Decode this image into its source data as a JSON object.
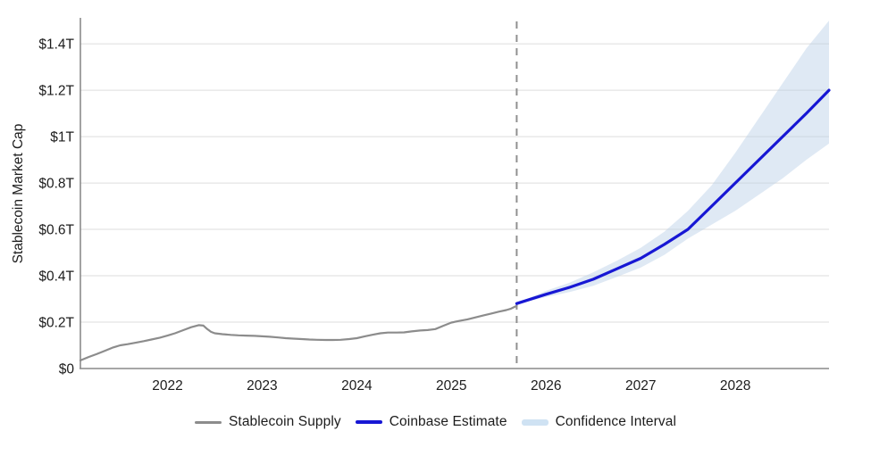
{
  "chart_data": {
    "type": "line",
    "title": "",
    "xlabel": "",
    "ylabel": "Stablecoin Market Cap",
    "xlim": [
      2021.08,
      2028.99
    ],
    "ylim": [
      0,
      1.512
    ],
    "grid": true,
    "legend_position": "bottom-center",
    "forecast_boundary_x": 2025.69,
    "x_ticks": [
      {
        "value": 2022,
        "label": "2022"
      },
      {
        "value": 2023,
        "label": "2023"
      },
      {
        "value": 2024,
        "label": "2024"
      },
      {
        "value": 2025,
        "label": "2025"
      },
      {
        "value": 2026,
        "label": "2026"
      },
      {
        "value": 2027,
        "label": "2027"
      },
      {
        "value": 2028,
        "label": "2028"
      }
    ],
    "y_ticks": [
      {
        "value": 0,
        "label": "$0"
      },
      {
        "value": 0.2,
        "label": "$0.2T"
      },
      {
        "value": 0.4,
        "label": "$0.4T"
      },
      {
        "value": 0.6,
        "label": "$0.6T"
      },
      {
        "value": 0.8,
        "label": "$0.8T"
      },
      {
        "value": 1.0,
        "label": "$1T"
      },
      {
        "value": 1.2,
        "label": "$1.2T"
      },
      {
        "value": 1.4,
        "label": "$1.4T"
      }
    ],
    "series": [
      {
        "name": "Stablecoin Supply",
        "kind": "line",
        "color": "#8c8c8c",
        "width": 2.2,
        "points": [
          [
            2021.08,
            0.035
          ],
          [
            2021.17,
            0.05
          ],
          [
            2021.25,
            0.062
          ],
          [
            2021.33,
            0.075
          ],
          [
            2021.42,
            0.09
          ],
          [
            2021.5,
            0.1
          ],
          [
            2021.58,
            0.105
          ],
          [
            2021.67,
            0.112
          ],
          [
            2021.75,
            0.118
          ],
          [
            2021.83,
            0.125
          ],
          [
            2021.92,
            0.133
          ],
          [
            2022.0,
            0.142
          ],
          [
            2022.08,
            0.152
          ],
          [
            2022.17,
            0.166
          ],
          [
            2022.25,
            0.178
          ],
          [
            2022.33,
            0.187
          ],
          [
            2022.38,
            0.185
          ],
          [
            2022.42,
            0.17
          ],
          [
            2022.46,
            0.158
          ],
          [
            2022.5,
            0.152
          ],
          [
            2022.58,
            0.148
          ],
          [
            2022.67,
            0.145
          ],
          [
            2022.75,
            0.143
          ],
          [
            2022.83,
            0.142
          ],
          [
            2022.92,
            0.141
          ],
          [
            2023.0,
            0.139
          ],
          [
            2023.08,
            0.137
          ],
          [
            2023.17,
            0.134
          ],
          [
            2023.25,
            0.131
          ],
          [
            2023.33,
            0.129
          ],
          [
            2023.42,
            0.127
          ],
          [
            2023.5,
            0.125
          ],
          [
            2023.58,
            0.124
          ],
          [
            2023.67,
            0.123
          ],
          [
            2023.75,
            0.123
          ],
          [
            2023.83,
            0.124
          ],
          [
            2023.92,
            0.127
          ],
          [
            2024.0,
            0.131
          ],
          [
            2024.08,
            0.138
          ],
          [
            2024.17,
            0.146
          ],
          [
            2024.25,
            0.152
          ],
          [
            2024.33,
            0.155
          ],
          [
            2024.42,
            0.155
          ],
          [
            2024.5,
            0.156
          ],
          [
            2024.58,
            0.16
          ],
          [
            2024.67,
            0.164
          ],
          [
            2024.75,
            0.166
          ],
          [
            2024.83,
            0.17
          ],
          [
            2024.92,
            0.185
          ],
          [
            2025.0,
            0.198
          ],
          [
            2025.08,
            0.205
          ],
          [
            2025.17,
            0.212
          ],
          [
            2025.25,
            0.22
          ],
          [
            2025.33,
            0.228
          ],
          [
            2025.42,
            0.237
          ],
          [
            2025.5,
            0.245
          ],
          [
            2025.58,
            0.252
          ],
          [
            2025.63,
            0.258
          ],
          [
            2025.69,
            0.27
          ]
        ]
      },
      {
        "name": "Coinbase Estimate",
        "kind": "line",
        "color": "#1717d4",
        "width": 3.2,
        "points": [
          [
            2025.69,
            0.28
          ],
          [
            2026.0,
            0.32
          ],
          [
            2026.25,
            0.35
          ],
          [
            2026.5,
            0.385
          ],
          [
            2026.75,
            0.43
          ],
          [
            2027.0,
            0.475
          ],
          [
            2027.25,
            0.535
          ],
          [
            2027.5,
            0.6
          ],
          [
            2027.75,
            0.7
          ],
          [
            2028.0,
            0.8
          ],
          [
            2028.25,
            0.9
          ],
          [
            2028.5,
            1.0
          ],
          [
            2028.75,
            1.1
          ],
          [
            2028.99,
            1.2
          ]
        ]
      },
      {
        "name": "Confidence Interval",
        "kind": "band",
        "color": "#b9cfe7",
        "opacity": 0.45,
        "upper": [
          [
            2025.69,
            0.282
          ],
          [
            2026.0,
            0.335
          ],
          [
            2026.25,
            0.37
          ],
          [
            2026.5,
            0.415
          ],
          [
            2026.75,
            0.465
          ],
          [
            2027.0,
            0.52
          ],
          [
            2027.25,
            0.59
          ],
          [
            2027.5,
            0.68
          ],
          [
            2027.75,
            0.79
          ],
          [
            2028.0,
            0.93
          ],
          [
            2028.25,
            1.08
          ],
          [
            2028.5,
            1.23
          ],
          [
            2028.75,
            1.38
          ],
          [
            2028.99,
            1.5
          ]
        ],
        "lower": [
          [
            2025.69,
            0.278
          ],
          [
            2026.0,
            0.308
          ],
          [
            2026.25,
            0.33
          ],
          [
            2026.5,
            0.357
          ],
          [
            2026.75,
            0.395
          ],
          [
            2027.0,
            0.435
          ],
          [
            2027.25,
            0.49
          ],
          [
            2027.5,
            0.56
          ],
          [
            2027.75,
            0.62
          ],
          [
            2028.0,
            0.68
          ],
          [
            2028.25,
            0.75
          ],
          [
            2028.5,
            0.82
          ],
          [
            2028.75,
            0.9
          ],
          [
            2028.99,
            0.97
          ]
        ]
      }
    ],
    "legend": [
      {
        "label": "Stablecoin Supply",
        "swatch": "gray-line"
      },
      {
        "label": "Coinbase Estimate",
        "swatch": "blue-line"
      },
      {
        "label": "Confidence Interval",
        "swatch": "band"
      }
    ]
  },
  "colors": {
    "historical_line": "#8c8c8c",
    "estimate_line": "#1717d4",
    "confidence_band": "#b9cfe7",
    "confidence_swatch": "#cfe2f3",
    "gridline": "#e4e4e4",
    "axis": "#8a8a8a",
    "dashed_boundary": "#909090",
    "tick_text": "#1c1c1c"
  }
}
